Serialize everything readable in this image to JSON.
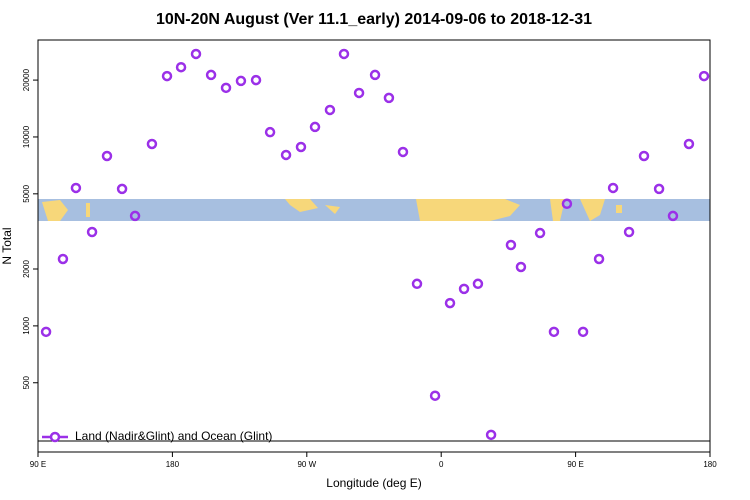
{
  "chart_data": {
    "type": "scatter",
    "title": "10N-20N August (Ver 11.1_early)   2014-09-06 to 2018-12-31",
    "x_label": "Longitude (deg E)",
    "y_label": "N Total",
    "xlim": [
      90,
      540
    ],
    "xticks": [
      {
        "value": 90,
        "label": "90 E"
      },
      180,
      {
        "value": 270,
        "label": "90 W"
      },
      {
        "value": 360,
        "label": "0"
      },
      {
        "value": 450,
        "label": "90 E"
      },
      {
        "value": 540,
        "label": "180"
      }
    ],
    "ylim": [
      215,
      32600
    ],
    "yticks": [
      500,
      1000,
      2000,
      5000,
      10000,
      20000
    ],
    "y_log": true,
    "series": [
      {
        "name": "Land (Nadir&Glint) and Ocean (Glint)",
        "color": "#9b30e8",
        "x": [
          95.4,
          106.7,
          115.4,
          126.2,
          136.2,
          146.3,
          155,
          166.3,
          176.4,
          185.8,
          195.8,
          205.9,
          215.9,
          225.9,
          236,
          245.4,
          256.1,
          266.1,
          275.5,
          285.5,
          294.9,
          305,
          315.7,
          325,
          334.4,
          343.8,
          355.9,
          365.9,
          375.3,
          384.6,
          393.4,
          406.7,
          413.4,
          426.2,
          435.5,
          444.2,
          455,
          465.7,
          475.1,
          485.8,
          495.8,
          505.9,
          515.2,
          525.9,
          536
        ],
        "values": [
          930,
          2260,
          5370,
          3140,
          7930,
          5310,
          3820,
          9180,
          21000,
          23400,
          27500,
          21300,
          18200,
          19800,
          20000,
          10600,
          8030,
          8850,
          11300,
          13900,
          27500,
          17100,
          21300,
          16100,
          8330,
          1670,
          427,
          1320,
          1570,
          1670,
          265,
          2680,
          2050,
          3100,
          930,
          4430,
          930,
          2260,
          5370,
          3140,
          7930,
          5310,
          3820,
          9180,
          21000
        ]
      }
    ]
  }
}
